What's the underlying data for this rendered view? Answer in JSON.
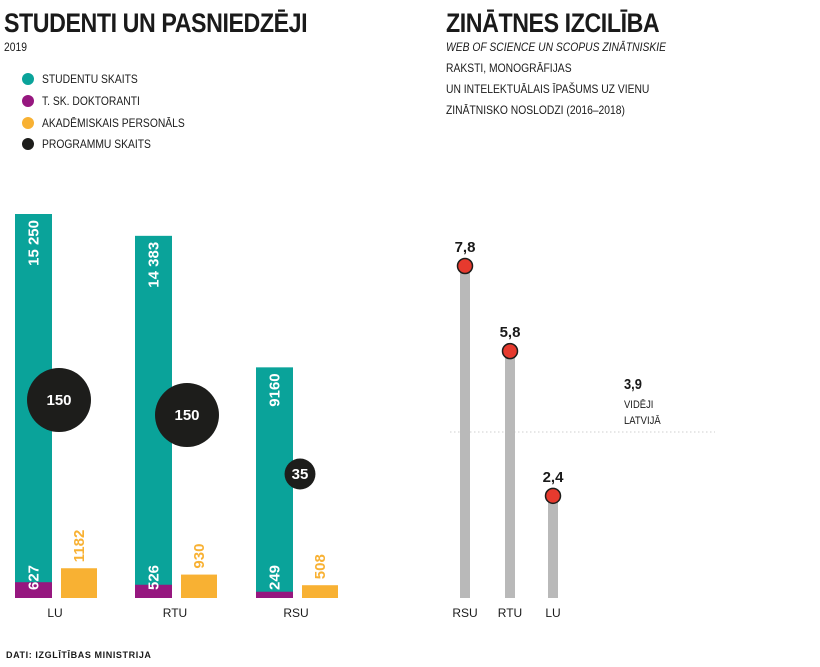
{
  "left": {
    "title": "STUDENTI UN PASNIEDZĒJI",
    "year": "2019",
    "legend": [
      {
        "label": "STUDENTU SKAITS",
        "color": "#0aa39a",
        "icon": "teal-dot-icon"
      },
      {
        "label": "T. SK. DOKTORANTI",
        "color": "#96177f",
        "icon": "purple-dot-icon"
      },
      {
        "label": "AKADĒMISKAIS PERSONĀLS",
        "color": "#f8b133",
        "icon": "yellow-dot-icon"
      },
      {
        "label": "PROGRAMMU SKAITS",
        "color": "#1d1d1b",
        "icon": "black-dot-icon"
      }
    ]
  },
  "right": {
    "title": "ZINĀTNES IZCILĪBA",
    "subtitle_lines": [
      "WEB OF SCIENCE UN SCOPUS ZINĀTNISKIE",
      "RAKSTI, MONOGRĀFIJAS",
      "UN INTELEKTUĀLAIS ĪPAŠUMS UZ VIENU",
      "ZINĀTNISKO NOSLODZI (2016–2018)"
    ],
    "average_value": "3,9",
    "average_label_lines": [
      "VIDĒJI",
      "LATVIJĀ"
    ]
  },
  "source": "DATI: IZGLĪTĪBAS MINISTRIJA",
  "chart_data": [
    {
      "type": "bar",
      "title": "STUDENTI UN PASNIEDZĒJI",
      "subtitle": "2019",
      "categories": [
        "LU",
        "RTU",
        "RSU"
      ],
      "series": [
        {
          "name": "STUDENTU SKAITS",
          "values": [
            15250,
            14383,
            9160
          ],
          "labels": [
            "15 250",
            "14 383",
            "9160"
          ],
          "color": "#0aa39a"
        },
        {
          "name": "T. SK. DOKTORANTI",
          "values": [
            627,
            526,
            249
          ],
          "labels": [
            "627",
            "526",
            "249"
          ],
          "color": "#96177f"
        },
        {
          "name": "AKADĒMISKAIS PERSONĀLS",
          "values": [
            1182,
            930,
            508
          ],
          "labels": [
            "1182",
            "930",
            "508"
          ],
          "color": "#f8b133"
        },
        {
          "name": "PROGRAMMU SKAITS",
          "values": [
            150,
            150,
            35
          ],
          "labels": [
            "150",
            "150",
            "35"
          ],
          "color": "#1d1d1b"
        }
      ],
      "legend": "top-left",
      "grid": false
    },
    {
      "type": "bar",
      "title": "ZINĀTNES IZCILĪBA",
      "categories": [
        "RSU",
        "RTU",
        "LU"
      ],
      "values": [
        7.8,
        5.8,
        2.4
      ],
      "labels": [
        "7,8",
        "5,8",
        "2,4"
      ],
      "reference_line": {
        "value": 3.9,
        "label": "VIDĒJI LATVIJĀ"
      },
      "colors": {
        "stem": "#b9b9b9",
        "dot": "#e63a2e",
        "dot_outline": "#1d1d1b"
      },
      "grid": false
    }
  ]
}
